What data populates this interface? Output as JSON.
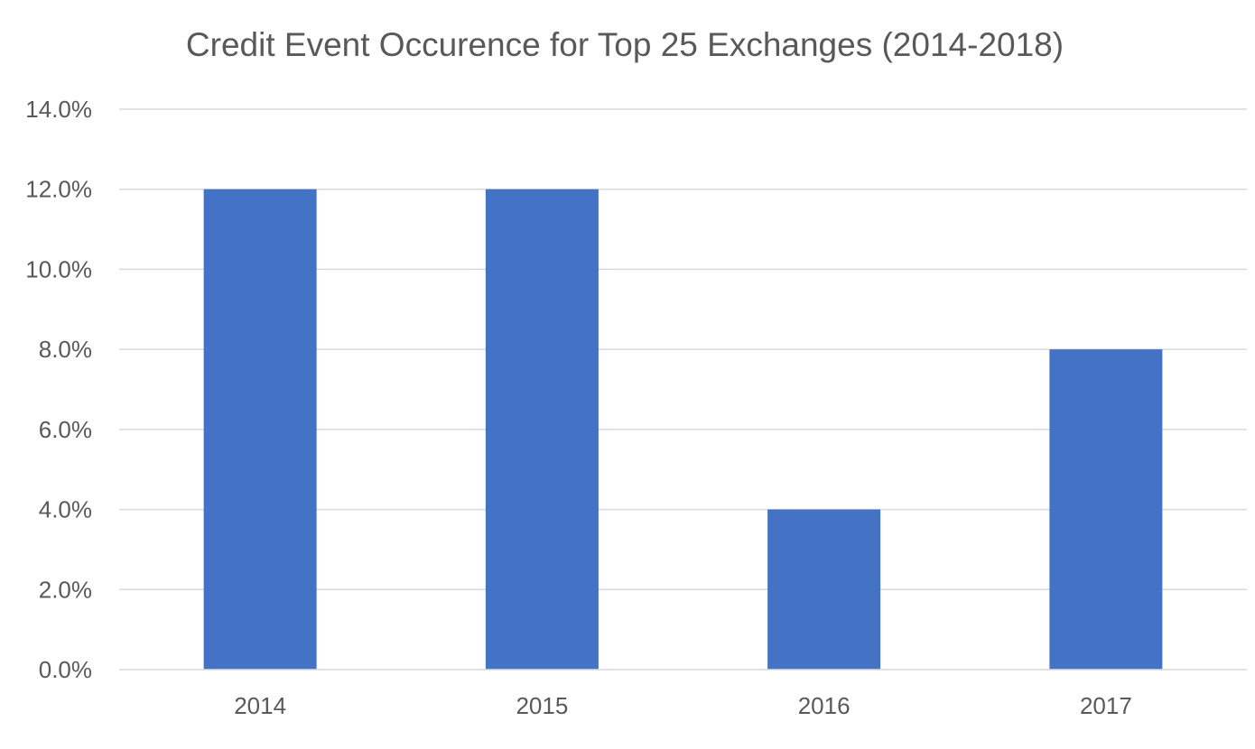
{
  "chart_data": {
    "type": "bar",
    "title": "Credit Event Occurence for Top 25 Exchanges (2014-2018)",
    "xlabel": "",
    "ylabel": "",
    "categories": [
      "2014",
      "2015",
      "2016",
      "2017"
    ],
    "values": [
      12.0,
      12.0,
      4.0,
      8.0
    ],
    "value_format": "percent",
    "ylim": [
      0,
      14
    ],
    "yticks": [
      0,
      2,
      4,
      6,
      8,
      10,
      12,
      14
    ],
    "ytick_labels": [
      "0.0%",
      "2.0%",
      "4.0%",
      "6.0%",
      "8.0%",
      "10.0%",
      "12.0%",
      "14.0%"
    ],
    "grid": true,
    "legend": "none",
    "colors": {
      "bar": "#4472c4"
    }
  }
}
